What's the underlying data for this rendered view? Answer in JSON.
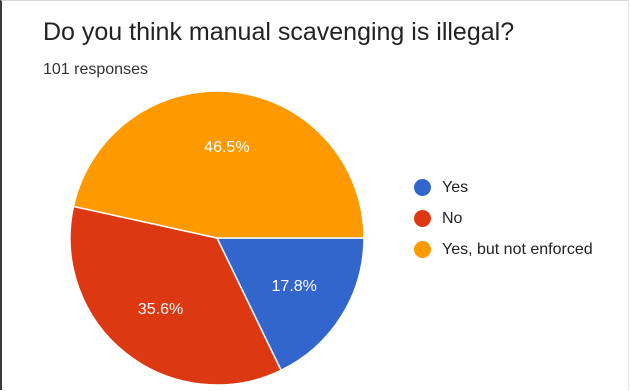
{
  "chart_data": {
    "type": "pie",
    "title": "Do you think manual scavenging is illegal?",
    "subtitle": "101 responses",
    "categories": [
      "Yes",
      "No",
      "Yes, but not enforced"
    ],
    "values": [
      17.8,
      35.6,
      46.5
    ],
    "value_labels": [
      "17.8%",
      "35.6%",
      "46.5%"
    ],
    "colors": [
      "#3366cc",
      "#dc3912",
      "#ff9900"
    ],
    "label_color": "#ffffff",
    "legend_position": "right"
  }
}
